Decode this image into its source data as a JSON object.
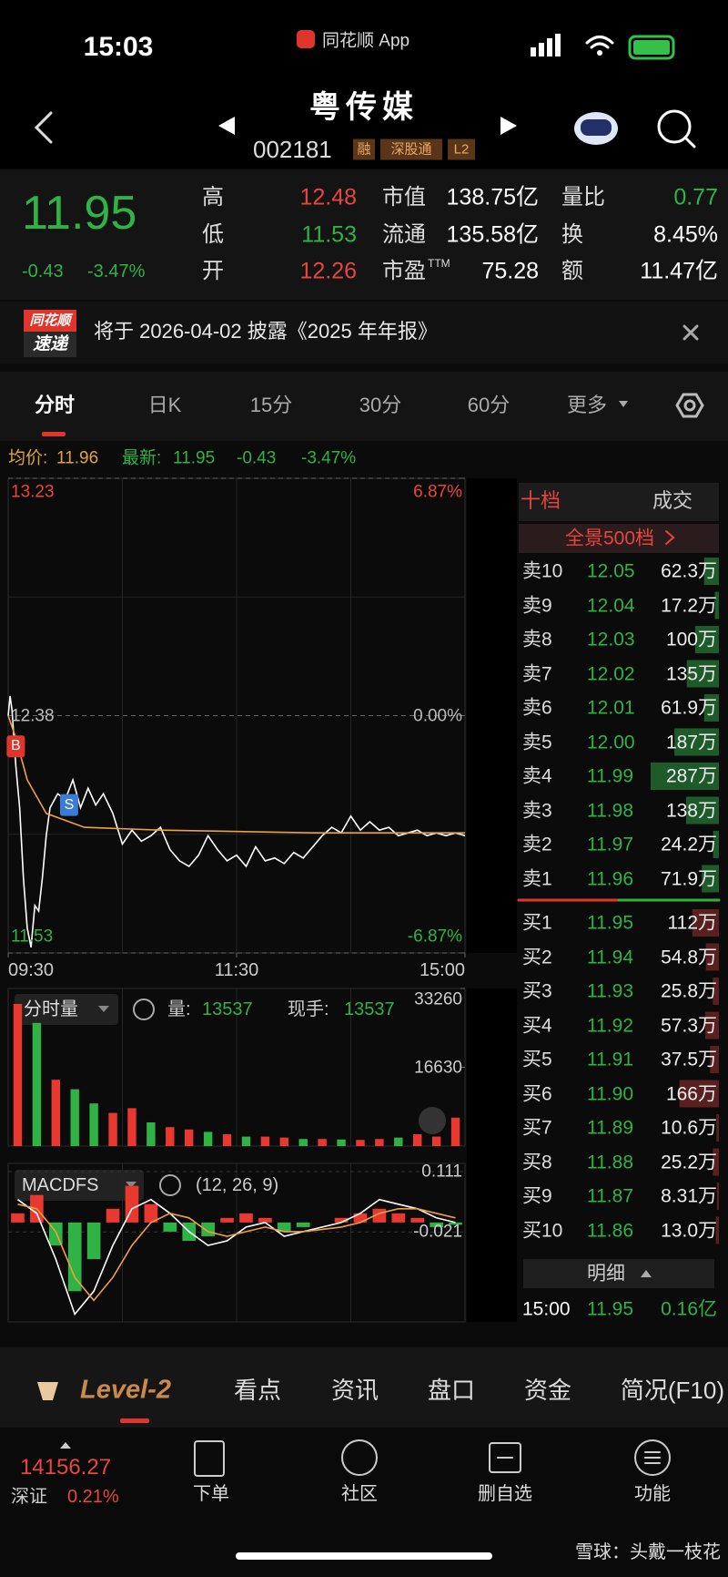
{
  "status_bar": {
    "time": "15:03",
    "app": "同花顺 App"
  },
  "header": {
    "title": "粤传媒",
    "code": "002181",
    "tags": [
      "融",
      "深股通",
      "L2"
    ]
  },
  "quote": {
    "price": "11.95",
    "change": "-0.43",
    "change_pct": "-3.47%",
    "stats": [
      {
        "label": "高",
        "value": "12.48"
      },
      {
        "label": "低",
        "value": "11.53"
      },
      {
        "label": "开",
        "value": "12.26"
      },
      {
        "label": "市值",
        "value": "138.75亿"
      },
      {
        "label": "流通",
        "value": "135.58亿"
      },
      {
        "label": "市盈",
        "sup": "TTM",
        "value": "75.28"
      },
      {
        "label": "量比",
        "value": "0.77"
      },
      {
        "label": "换",
        "value": "8.45%"
      },
      {
        "label": "额",
        "value": "11.47亿"
      }
    ]
  },
  "notice": {
    "badge": [
      "同花顺",
      "速递"
    ],
    "text": "将于 2026-04-02 披露《2025 年年报》"
  },
  "tabs": [
    "分时",
    "日K",
    "15分",
    "30分",
    "60分",
    "更多"
  ],
  "info_line": {
    "avg_label": "均价:",
    "avg": "11.96",
    "latest_label": "最新:",
    "latest": "11.95",
    "change": "-0.43",
    "change_pct": "-3.47%"
  },
  "chart_data": [
    {
      "type": "line",
      "xlim": [
        0,
        240
      ],
      "xticks": [
        {
          "value": 0,
          "label": "09:30"
        },
        {
          "value": 120,
          "label": "11:30"
        },
        {
          "value": 240,
          "label": "15:00"
        }
      ],
      "ylim": [
        11.53,
        13.23
      ],
      "yticks": [
        13.23,
        12.38,
        11.53
      ],
      "y2lim": [
        -6.87,
        6.87
      ],
      "y2ticks": [
        {
          "value": 6.87,
          "label": "6.87%"
        },
        {
          "value": 0,
          "label": "0.00%"
        },
        {
          "value": -6.87,
          "label": "-6.87%"
        }
      ],
      "series": [
        {
          "color": "#ffffff",
          "x": [
            0,
            1,
            2,
            4,
            6,
            8,
            10,
            12,
            14,
            16,
            18,
            20,
            22,
            26,
            30,
            34,
            38,
            42,
            46,
            50,
            55,
            60,
            65,
            70,
            75,
            80,
            85,
            90,
            95,
            100,
            105,
            110,
            115,
            120,
            125,
            130,
            135,
            140,
            145,
            150,
            155,
            160,
            165,
            170,
            175,
            180,
            185,
            190,
            195,
            200,
            205,
            210,
            215,
            220,
            225,
            230,
            235,
            240
          ],
          "values": [
            12.38,
            12.45,
            12.4,
            12.2,
            12.05,
            11.8,
            11.62,
            11.55,
            11.7,
            11.68,
            11.8,
            11.95,
            12.05,
            12.1,
            12.08,
            12.15,
            12.05,
            12.12,
            12.06,
            12.1,
            12.03,
            11.92,
            11.97,
            11.93,
            11.95,
            11.98,
            11.9,
            11.86,
            11.84,
            11.88,
            11.95,
            11.9,
            11.86,
            11.88,
            11.84,
            11.91,
            11.86,
            11.87,
            11.85,
            11.89,
            11.87,
            11.91,
            11.95,
            11.98,
            11.96,
            12.02,
            11.97,
            12.0,
            11.97,
            11.98,
            11.95,
            11.96,
            11.97,
            11.95,
            11.96,
            11.95,
            11.96,
            11.95
          ]
        },
        {
          "color": "#f0a040",
          "x": [
            0,
            4,
            10,
            20,
            40,
            80,
            160,
            240
          ],
          "values": [
            12.38,
            12.3,
            12.15,
            12.03,
            11.98,
            11.97,
            11.96,
            11.96
          ]
        }
      ],
      "annotations": [
        {
          "text": "B",
          "x": 4,
          "y": 12.27,
          "color": "#e0352b"
        },
        {
          "text": "S",
          "x": 32,
          "y": 12.06,
          "color": "#3a7bd5"
        }
      ]
    },
    {
      "type": "bar",
      "title": "分时量",
      "stats": [
        {
          "label": "量:",
          "value": "13537"
        },
        {
          "label": "现手:",
          "value": "13537"
        }
      ],
      "xlim": [
        0,
        240
      ],
      "ylim": [
        0,
        33260
      ],
      "yticks": [
        16630,
        33260
      ],
      "x": [
        5,
        15,
        25,
        35,
        45,
        55,
        65,
        75,
        85,
        95,
        105,
        115,
        125,
        135,
        145,
        155,
        165,
        175,
        185,
        195,
        205,
        215,
        225,
        235
      ],
      "values": [
        30000,
        26000,
        14000,
        12000,
        9000,
        7000,
        8000,
        5000,
        4000,
        3500,
        3000,
        2500,
        2000,
        2000,
        1800,
        1500,
        1500,
        1400,
        1300,
        1500,
        1800,
        2500,
        2000,
        6000
      ],
      "colors": [
        "#e8382f",
        "#2fb344",
        "#e8382f",
        "#2fb344",
        "#2fb344",
        "#e8382f",
        "#e8382f",
        "#2fb344",
        "#e8382f",
        "#e8382f",
        "#2fb344",
        "#e8382f",
        "#2fb344",
        "#e8382f",
        "#e8382f",
        "#2fb344",
        "#e8382f",
        "#2fb344",
        "#e8382f",
        "#e8382f",
        "#2fb344",
        "#e8382f",
        "#e8382f",
        "#e8382f"
      ]
    },
    {
      "type": "macd",
      "title": "MACDFS",
      "params": "(12, 26, 9)",
      "xlim": [
        0,
        240
      ],
      "ylim": [
        -0.217,
        0.129
      ],
      "yticks": [
        0.111,
        -0.021
      ],
      "x": [
        5,
        15,
        25,
        35,
        45,
        55,
        65,
        75,
        85,
        95,
        105,
        115,
        125,
        135,
        145,
        155,
        165,
        175,
        185,
        195,
        205,
        215,
        225,
        235
      ],
      "series": [
        {
          "type": "bar",
          "up_color": "#e8382f",
          "down_color": "#2fb344",
          "values": [
            0.02,
            0.06,
            -0.05,
            -0.15,
            -0.08,
            0.03,
            0.08,
            0.04,
            -0.02,
            -0.04,
            -0.03,
            0.01,
            0.02,
            0.01,
            -0.02,
            -0.01,
            0.0,
            0.01,
            0.02,
            0.03,
            0.02,
            0.01,
            -0.01,
            -0.005
          ]
        },
        {
          "color": "#ffffff",
          "values": [
            0.05,
            0.02,
            -0.08,
            -0.2,
            -0.15,
            -0.05,
            0.03,
            0.05,
            0.02,
            -0.02,
            -0.05,
            -0.04,
            -0.01,
            0.0,
            -0.03,
            -0.02,
            -0.01,
            0.0,
            0.02,
            0.05,
            0.04,
            0.03,
            0.01,
            0.0
          ]
        },
        {
          "color": "#f0a040",
          "values": [
            0.04,
            0.03,
            -0.02,
            -0.12,
            -0.17,
            -0.12,
            -0.05,
            0.0,
            0.02,
            0.01,
            -0.02,
            -0.03,
            -0.02,
            -0.01,
            -0.02,
            -0.02,
            -0.015,
            -0.01,
            0.0,
            0.02,
            0.03,
            0.03,
            0.02,
            0.01
          ]
        }
      ]
    }
  ],
  "order_book": {
    "tabs": [
      "十档",
      "成交"
    ],
    "panorama": "全景500档",
    "sell": [
      {
        "level": "卖10",
        "price": "12.05",
        "volume": {
          "value": 62.3,
          "label": "62.3万"
        }
      },
      {
        "level": "卖9",
        "price": "12.04",
        "volume": {
          "value": 17.2,
          "label": "17.2万"
        }
      },
      {
        "level": "卖8",
        "price": "12.03",
        "volume": {
          "value": 100,
          "label": "100万"
        }
      },
      {
        "level": "卖7",
        "price": "12.02",
        "volume": {
          "value": 135,
          "label": "135万"
        }
      },
      {
        "level": "卖6",
        "price": "12.01",
        "volume": {
          "value": 61.9,
          "label": "61.9万"
        }
      },
      {
        "level": "卖5",
        "price": "12.00",
        "volume": {
          "value": 187,
          "label": "187万"
        }
      },
      {
        "level": "卖4",
        "price": "11.99",
        "volume": {
          "value": 287,
          "label": "287万"
        }
      },
      {
        "level": "卖3",
        "price": "11.98",
        "volume": {
          "value": 138,
          "label": "138万"
        }
      },
      {
        "level": "卖2",
        "price": "11.97",
        "volume": {
          "value": 24.2,
          "label": "24.2万"
        }
      },
      {
        "level": "卖1",
        "price": "11.96",
        "volume": {
          "value": 71.9,
          "label": "71.9万"
        }
      }
    ],
    "buy": [
      {
        "level": "买1",
        "price": "11.95",
        "volume": {
          "value": 112,
          "label": "112万"
        }
      },
      {
        "level": "买2",
        "price": "11.94",
        "volume": {
          "value": 54.8,
          "label": "54.8万"
        }
      },
      {
        "level": "买3",
        "price": "11.93",
        "volume": {
          "value": 25.8,
          "label": "25.8万"
        }
      },
      {
        "level": "买4",
        "price": "11.92",
        "volume": {
          "value": 57.3,
          "label": "57.3万"
        }
      },
      {
        "level": "买5",
        "price": "11.91",
        "volume": {
          "value": 37.5,
          "label": "37.5万"
        }
      },
      {
        "level": "买6",
        "price": "11.90",
        "volume": {
          "value": 166,
          "label": "166万"
        }
      },
      {
        "level": "买7",
        "price": "11.89",
        "volume": {
          "value": 10.6,
          "label": "10.6万"
        }
      },
      {
        "level": "买8",
        "price": "11.88",
        "volume": {
          "value": 25.2,
          "label": "25.2万"
        }
      },
      {
        "level": "买9",
        "price": "11.87",
        "volume": {
          "value": 8.31,
          "label": "8.31万"
        }
      },
      {
        "level": "买10",
        "price": "11.86",
        "volume": {
          "value": 13,
          "label": "13.0万"
        }
      }
    ],
    "detail": {
      "title": "明细",
      "time": "15:00",
      "price": "11.95",
      "amount": "0.16亿"
    }
  },
  "bottom_tabs": [
    "Level-2",
    "看点",
    "资讯",
    "盘口",
    "资金",
    "简况(F10)"
  ],
  "bottom_bar": {
    "index_value": "14156.27",
    "index_name": "深证",
    "index_pct": "0.21%",
    "actions": [
      "下单",
      "社区",
      "删自选",
      "功能"
    ]
  },
  "watermark": "雪球：头戴一枝花"
}
